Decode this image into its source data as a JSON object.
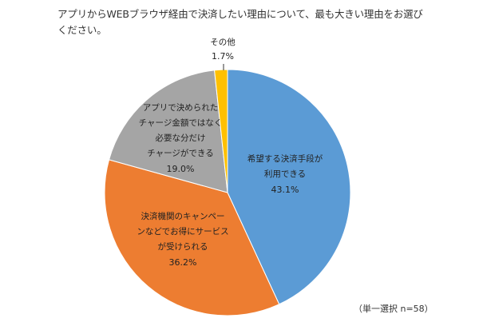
{
  "question": "アプリからWEBブラウザ経由で決済したい理由について、最も大きい理由をお選びください。",
  "note": "（単一選択 n=58）",
  "slices": [
    {
      "label_lines": [
        "希望する決済手段が",
        "利用できる"
      ],
      "pct_text": "43.1%",
      "color": "#5B9BD5"
    },
    {
      "label_lines": [
        "決済機関のキャンペー",
        "ンなどでお得にサービス",
        "が受けられる"
      ],
      "pct_text": "36.2%",
      "color": "#ED7D31"
    },
    {
      "label_lines": [
        "アプリで決められた",
        "チャージ金額ではなく",
        "必要な分だけ",
        "チャージができる"
      ],
      "pct_text": "19.0%",
      "color": "#A5A5A5"
    },
    {
      "label_lines": [
        "その他"
      ],
      "pct_text": "1.7%",
      "color": "#FFC000"
    }
  ],
  "chart_data": {
    "type": "pie",
    "title": "アプリからWEBブラウザ経由で決済したい理由について、最も大きい理由をお選びください。",
    "categories": [
      "希望する決済手段が利用できる",
      "決済機関のキャンペーンなどでお得にサービスが受けられる",
      "アプリで決められたチャージ金額ではなく必要な分だけチャージができる",
      "その他"
    ],
    "values": [
      43.1,
      36.2,
      19.0,
      1.7
    ],
    "unit": "%",
    "colors": [
      "#5B9BD5",
      "#ED7D31",
      "#A5A5A5",
      "#FFC000"
    ],
    "start_angle": "12 o'clock, clockwise",
    "annotation": "（単一選択 n=58）",
    "legend": "none (data labels on slices)"
  }
}
